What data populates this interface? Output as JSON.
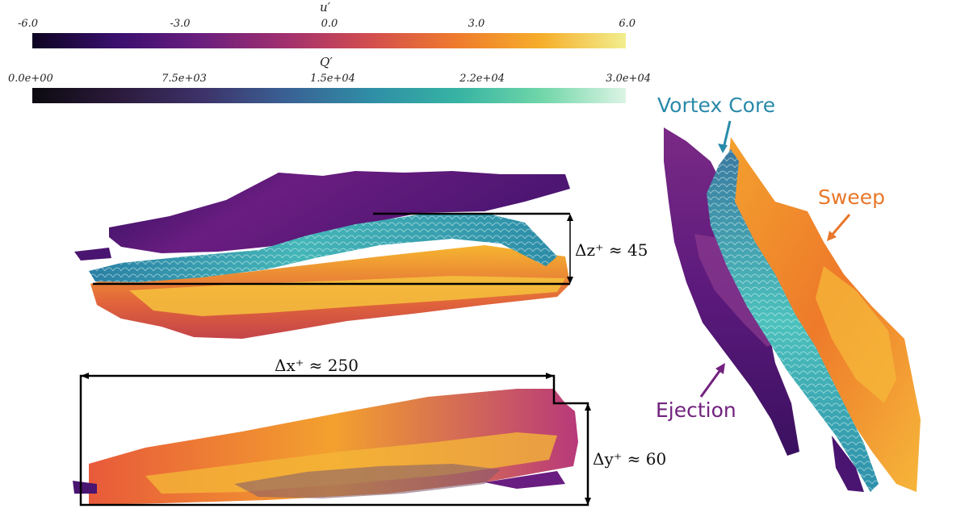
{
  "colorbars": [
    {
      "title_base": "u",
      "title_prime": "′",
      "ticks": [
        "-6.0",
        "-3.0",
        "0.0",
        "3.0",
        "6.0"
      ],
      "colormap": "plasma-like",
      "stops": [
        "#0d0422",
        "#3a0f6e",
        "#6b1f7e",
        "#a2306e",
        "#d34e4e",
        "#ef7b2d",
        "#f6ae2b",
        "#f2ee8e"
      ]
    },
    {
      "title_base": "Q",
      "title_prime": "′",
      "ticks": [
        "0.0e+00",
        "7.5e+03",
        "1.5e+04",
        "2.2e+04",
        "3.0e+04"
      ],
      "colormap": "mako-like",
      "stops": [
        "#0c0a10",
        "#2b1a3b",
        "#3d3269",
        "#3a6194",
        "#2f8ea6",
        "#36b3a3",
        "#6fd6a8",
        "#dcf4e4"
      ]
    }
  ],
  "dimensions": {
    "dz": "Δz⁺ ≈ 45",
    "dx": "Δx⁺ ≈ 250",
    "dy": "Δy⁺ ≈ 60"
  },
  "labels": {
    "vortex_core": "Vortex Core",
    "sweep": "Sweep",
    "ejection": "Ejection"
  },
  "colors": {
    "ejection": "#6a1d80",
    "sweep": "#ee7a2a",
    "vortex": "#2f8fae",
    "vortex_label": "#2a8aaa",
    "sweep_label": "#e8772a",
    "ejection_label": "#72227e"
  }
}
